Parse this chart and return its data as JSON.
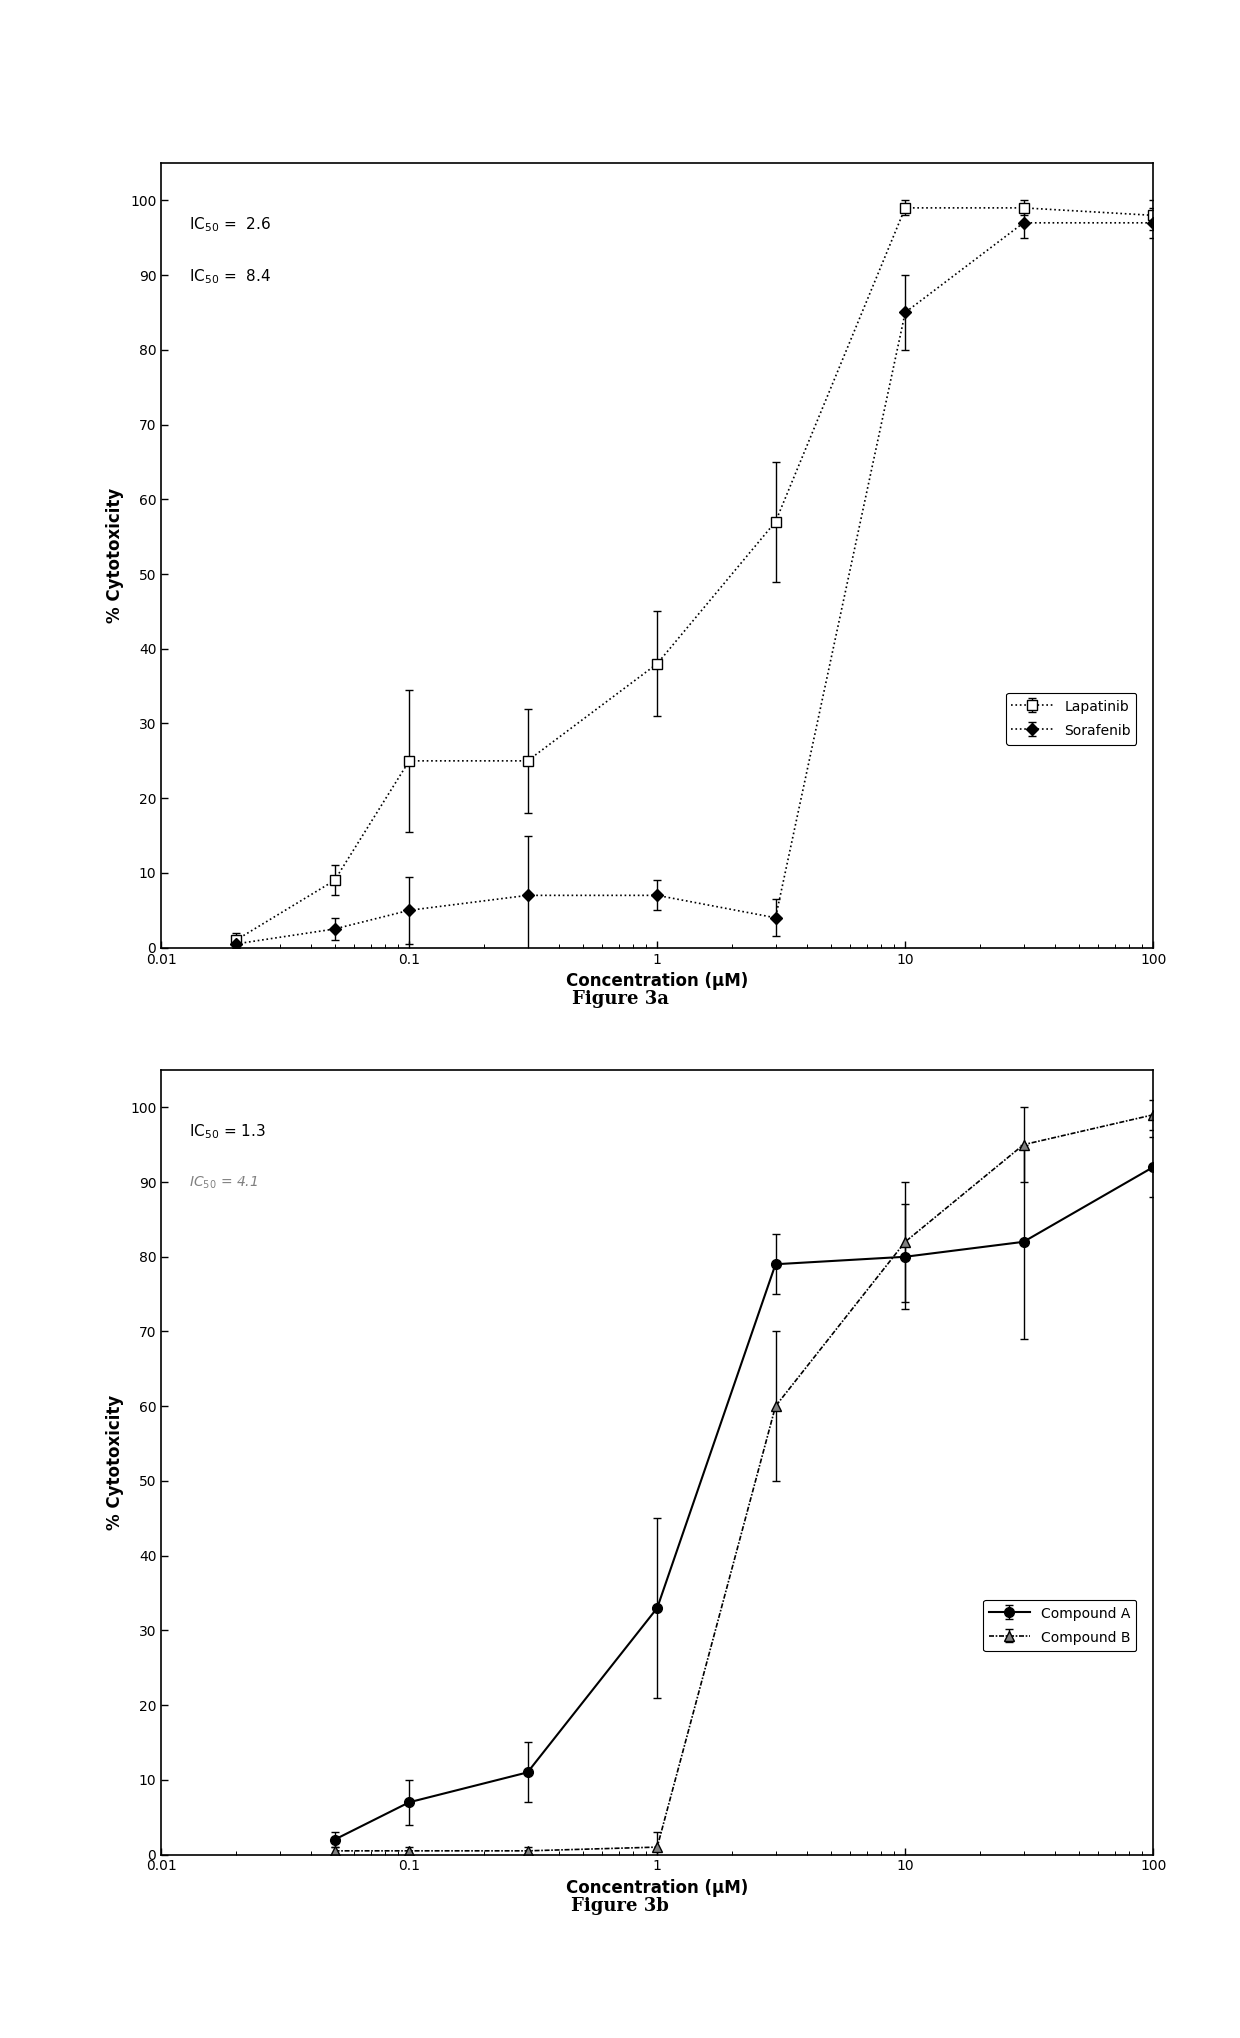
{
  "fig3a": {
    "title": "Figure 3a",
    "xlabel": "Concentration (μM)",
    "ylabel": "% Cytotoxicity",
    "lapatinib_x": [
      0.02,
      0.05,
      0.1,
      0.3,
      1.0,
      3.0,
      10.0,
      30.0,
      100.0
    ],
    "lapatinib_y": [
      1.0,
      9.0,
      25.0,
      25.0,
      38.0,
      57.0,
      99.0,
      99.0,
      98.0
    ],
    "lapatinib_err": [
      1.0,
      2.0,
      9.5,
      7.0,
      7.0,
      8.0,
      1.0,
      1.0,
      2.0
    ],
    "sorafenib_x": [
      0.02,
      0.05,
      0.1,
      0.3,
      1.0,
      3.0,
      10.0,
      30.0,
      100.0
    ],
    "sorafenib_y": [
      0.5,
      2.5,
      5.0,
      7.0,
      7.0,
      4.0,
      85.0,
      97.0,
      97.0
    ],
    "sorafenib_err": [
      0.5,
      1.5,
      4.5,
      8.0,
      2.0,
      2.5,
      5.0,
      2.0,
      2.0
    ],
    "ic50_line1": "IC$_{50}$ =  2.6",
    "ic50_line2": "IC$_{50}$ =  8.4",
    "ylim": [
      0,
      105
    ],
    "yticks": [
      0,
      10,
      20,
      30,
      40,
      50,
      60,
      70,
      80,
      90,
      100
    ],
    "xlim_left": 0.01,
    "xlim_right": 100
  },
  "fig3b": {
    "title": "Figure 3b",
    "xlabel": "Concentration (μM)",
    "ylabel": "% Cytotoxicity",
    "compA_x": [
      0.05,
      0.1,
      0.3,
      1.0,
      3.0,
      10.0,
      30.0,
      100.0
    ],
    "compA_y": [
      2.0,
      7.0,
      11.0,
      33.0,
      79.0,
      80.0,
      82.0,
      92.0
    ],
    "compA_err": [
      1.0,
      3.0,
      4.0,
      12.0,
      4.0,
      7.0,
      13.0,
      4.0
    ],
    "compB_x": [
      0.05,
      0.1,
      0.3,
      1.0,
      3.0,
      10.0,
      30.0,
      100.0
    ],
    "compB_y": [
      0.5,
      0.5,
      0.5,
      1.0,
      60.0,
      82.0,
      95.0,
      99.0
    ],
    "compB_err": [
      0.5,
      0.5,
      0.5,
      2.0,
      10.0,
      8.0,
      5.0,
      2.0
    ],
    "ic50_line1": "IC$_{50}$ = 1.3",
    "ic50_line2": "IC$_{50}$ = 4.1",
    "ylim": [
      0,
      105
    ],
    "yticks": [
      0,
      10,
      20,
      30,
      40,
      50,
      60,
      70,
      80,
      90,
      100
    ],
    "xlim_left": 0.01,
    "xlim_right": 100
  },
  "bg_color": "#ffffff",
  "fontsize_label": 12,
  "fontsize_tick": 10,
  "fontsize_caption": 13,
  "fontsize_annotation": 10,
  "fontsize_legend": 10
}
